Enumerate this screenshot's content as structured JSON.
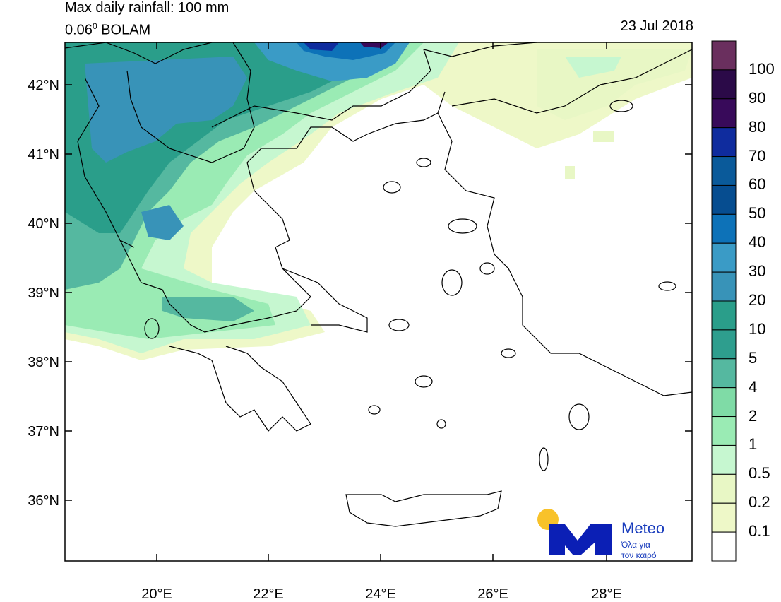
{
  "title": {
    "line1": "Max daily rainfall: 100 mm",
    "line2_prefix": "0.06",
    "line2_sup": "0",
    "line2_suffix": " BOLAM",
    "date": "23 Jul 2018"
  },
  "axes": {
    "lat_labels": [
      "42°N",
      "41°N",
      "40°N",
      "39°N",
      "38°N",
      "37°N",
      "36°N"
    ],
    "lon_labels": [
      "20°E",
      "22°E",
      "24°E",
      "26°E",
      "28°E"
    ]
  },
  "colorbar": {
    "labels": [
      "100",
      "90",
      "80",
      "70",
      "60",
      "50",
      "40",
      "30",
      "20",
      "10",
      "5",
      "4",
      "2",
      "1",
      "0.5",
      "0.2",
      "0.1"
    ],
    "colors": [
      "#6a2f5e",
      "#2b0a48",
      "#380a5a",
      "#0f2c9e",
      "#0a5a9a",
      "#064d90",
      "#0d72b8",
      "#3a9bc6",
      "#3893b8",
      "#2a9e8a",
      "#2e9e8e",
      "#55b8a0",
      "#7fdba6",
      "#9aebb4",
      "#c6f7d0",
      "#e8f7c5",
      "#eef8c8",
      "#ffffff"
    ]
  },
  "logo": {
    "name": "Meteo",
    "tagline_1": "Όλα για",
    "tagline_2": "τον καιρό",
    "brand_color": "#0b1fb5",
    "sun_color": "#f8c22a"
  }
}
